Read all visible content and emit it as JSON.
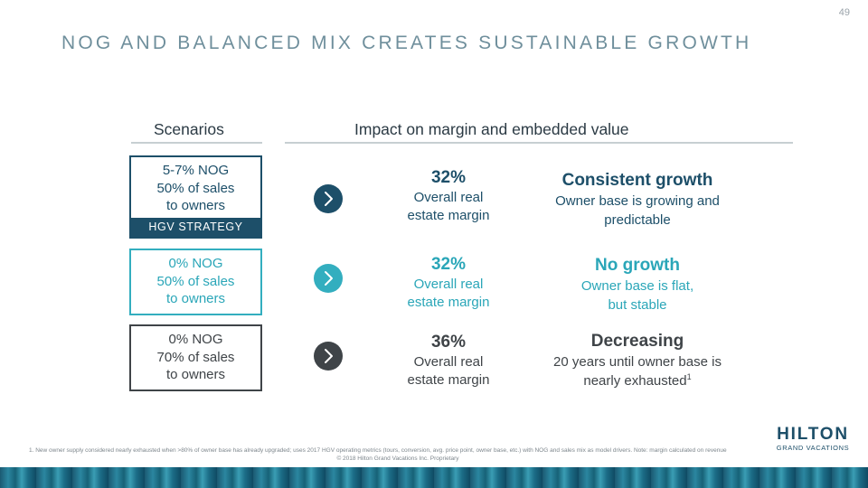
{
  "page_number": "49",
  "title": "NOG AND BALANCED MIX CREATES SUSTAINABLE GROWTH",
  "columns": {
    "scenarios": "Scenarios",
    "impact": "Impact on margin and embedded value"
  },
  "scenarios": [
    {
      "line1": "5-7% NOG",
      "line2": "50% of sales",
      "line3": "to owners",
      "tag": "HGV STRATEGY"
    },
    {
      "line1": "0% NOG",
      "line2": "50% of sales",
      "line3": "to owners"
    },
    {
      "line1": "0% NOG",
      "line2": "70% of sales",
      "line3": "to owners"
    }
  ],
  "metrics": [
    {
      "value": "32%",
      "line1": "Overall real",
      "line2": "estate margin"
    },
    {
      "value": "32%",
      "line1": "Overall real",
      "line2": "estate margin"
    },
    {
      "value": "36%",
      "line1": "Overall real",
      "line2": "estate margin"
    }
  ],
  "impacts": [
    {
      "heading": "Consistent growth",
      "line1": "Owner base is growing and",
      "line2": "predictable"
    },
    {
      "heading": "No growth",
      "line1": "Owner base is flat,",
      "line2": "but stable"
    },
    {
      "heading": "Decreasing",
      "line1": "20 years until owner base is",
      "line2": "nearly exhausted",
      "sup": "1"
    }
  ],
  "icons": {
    "arrow": "chevron-right-icon"
  },
  "colors": {
    "navy": "#1d4f69",
    "teal": "#33aebf",
    "gray": "#3f4448",
    "title": "#6f8f9c"
  },
  "footnote": "1. New owner supply considered nearly exhausted when >80% of owner base has already upgraded; uses 2017 HGV operating metrics (tours, conversion, avg. price point, owner base, etc.) with NOG and sales mix as model drivers. Note: margin calculated on revenue",
  "copyright": "© 2018 Hilton Grand Vacations Inc. Proprietary",
  "logo": {
    "main": "HILTON",
    "sub": "GRAND VACATIONS"
  }
}
